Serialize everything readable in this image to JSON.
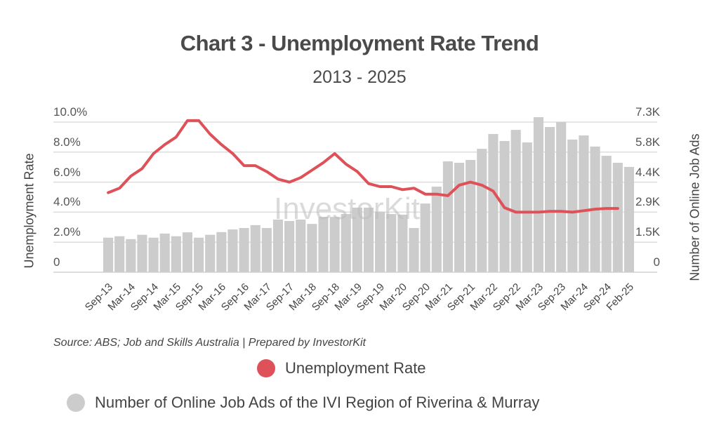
{
  "title": "Chart 3 - Unemployment Rate Trend",
  "subtitle": "2013 - 2025",
  "left_axis": {
    "title": "Unemployment Rate",
    "ticks": [
      "10.0%",
      "8.0%",
      "6.0%",
      "4.0%",
      "2.0%",
      "0"
    ]
  },
  "right_axis": {
    "title": "Number of Online Job Ads",
    "ticks": [
      "7.3K",
      "5.8K",
      "4.4K",
      "2.9K",
      "1.5K",
      "0"
    ]
  },
  "x_labels": [
    "Sep-13",
    "Mar-14",
    "Sep-14",
    "Mar-15",
    "Sep-15",
    "Mar-16",
    "Sep-16",
    "Mar-17",
    "Sep-17",
    "Mar-18",
    "Sep-18",
    "Mar-19",
    "Sep-19",
    "Mar-20",
    "Sep-20",
    "Mar-21",
    "Sep-21",
    "Mar-22",
    "Sep-22",
    "Mar-23",
    "Sep-23",
    "Mar-24",
    "Sep-24",
    "Feb-25"
  ],
  "source": "Source: ABS; Job and Skills Australia | Prepared by InvestorKit",
  "legend": [
    {
      "label": "Unemployment Rate",
      "color": "#de5158"
    },
    {
      "label": "Number of Online Job Ads of the IVI Region of Riverina & Murray",
      "color": "#cccccc"
    }
  ],
  "watermark": "InvestorKit",
  "chart_data": {
    "type": "bar+line",
    "title": "Chart 3 - Unemployment Rate Trend",
    "subtitle": "2013 - 2025",
    "x": [
      "Sep-13",
      "Dec-13",
      "Mar-14",
      "Jun-14",
      "Sep-14",
      "Dec-14",
      "Mar-15",
      "Jun-15",
      "Sep-15",
      "Dec-15",
      "Mar-16",
      "Jun-16",
      "Sep-16",
      "Dec-16",
      "Mar-17",
      "Jun-17",
      "Sep-17",
      "Dec-17",
      "Mar-18",
      "Jun-18",
      "Sep-18",
      "Dec-18",
      "Mar-19",
      "Jun-19",
      "Sep-19",
      "Dec-19",
      "Mar-20",
      "Jun-20",
      "Sep-20",
      "Dec-20",
      "Mar-21",
      "Jun-21",
      "Sep-21",
      "Dec-21",
      "Mar-22",
      "Jun-22",
      "Sep-22",
      "Dec-22",
      "Mar-23",
      "Jun-23",
      "Sep-23",
      "Dec-23",
      "Mar-24",
      "Jun-24",
      "Sep-24",
      "Dec-24",
      "Feb-25"
    ],
    "series": [
      {
        "name": "Number of Online Job Ads of the IVI Region of Riverina & Murray",
        "type": "bar",
        "axis": "right",
        "color": "#cccccc",
        "values": [
          1680,
          1750,
          1610,
          1820,
          1680,
          1880,
          1750,
          1940,
          1680,
          1820,
          1950,
          2080,
          2150,
          2290,
          2150,
          2560,
          2490,
          2560,
          2350,
          2690,
          2690,
          2830,
          3140,
          3140,
          2950,
          2830,
          2800,
          2150,
          3340,
          4160,
          5390,
          5320,
          5460,
          6000,
          6720,
          6380,
          6920,
          6310,
          7540,
          7060,
          7300,
          6450,
          6650,
          6110,
          5660,
          5320,
          5120
        ]
      },
      {
        "name": "Unemployment Rate",
        "type": "line",
        "axis": "left",
        "unit": "%",
        "color": "#de5158",
        "values": [
          5.3,
          5.6,
          6.4,
          6.9,
          7.9,
          8.5,
          9.0,
          10.1,
          10.1,
          9.2,
          8.5,
          7.9,
          7.1,
          7.1,
          6.7,
          6.2,
          6.0,
          6.3,
          6.8,
          7.3,
          7.9,
          7.2,
          6.7,
          5.9,
          5.7,
          5.7,
          5.5,
          5.6,
          5.2,
          5.2,
          5.1,
          5.8,
          6.0,
          5.8,
          5.4,
          4.3,
          4.0,
          4.0,
          4.0,
          4.05,
          4.05,
          4.0,
          4.1,
          4.2,
          4.25,
          4.25,
          null
        ]
      }
    ],
    "xlabel": "",
    "ylabel_left": "Unemployment Rate",
    "ylabel_right": "Number of Online Job Ads",
    "ylim_left": [
      0,
      10
    ],
    "ylim_right": [
      0,
      7300
    ],
    "grid": true,
    "legend_position": "bottom"
  }
}
